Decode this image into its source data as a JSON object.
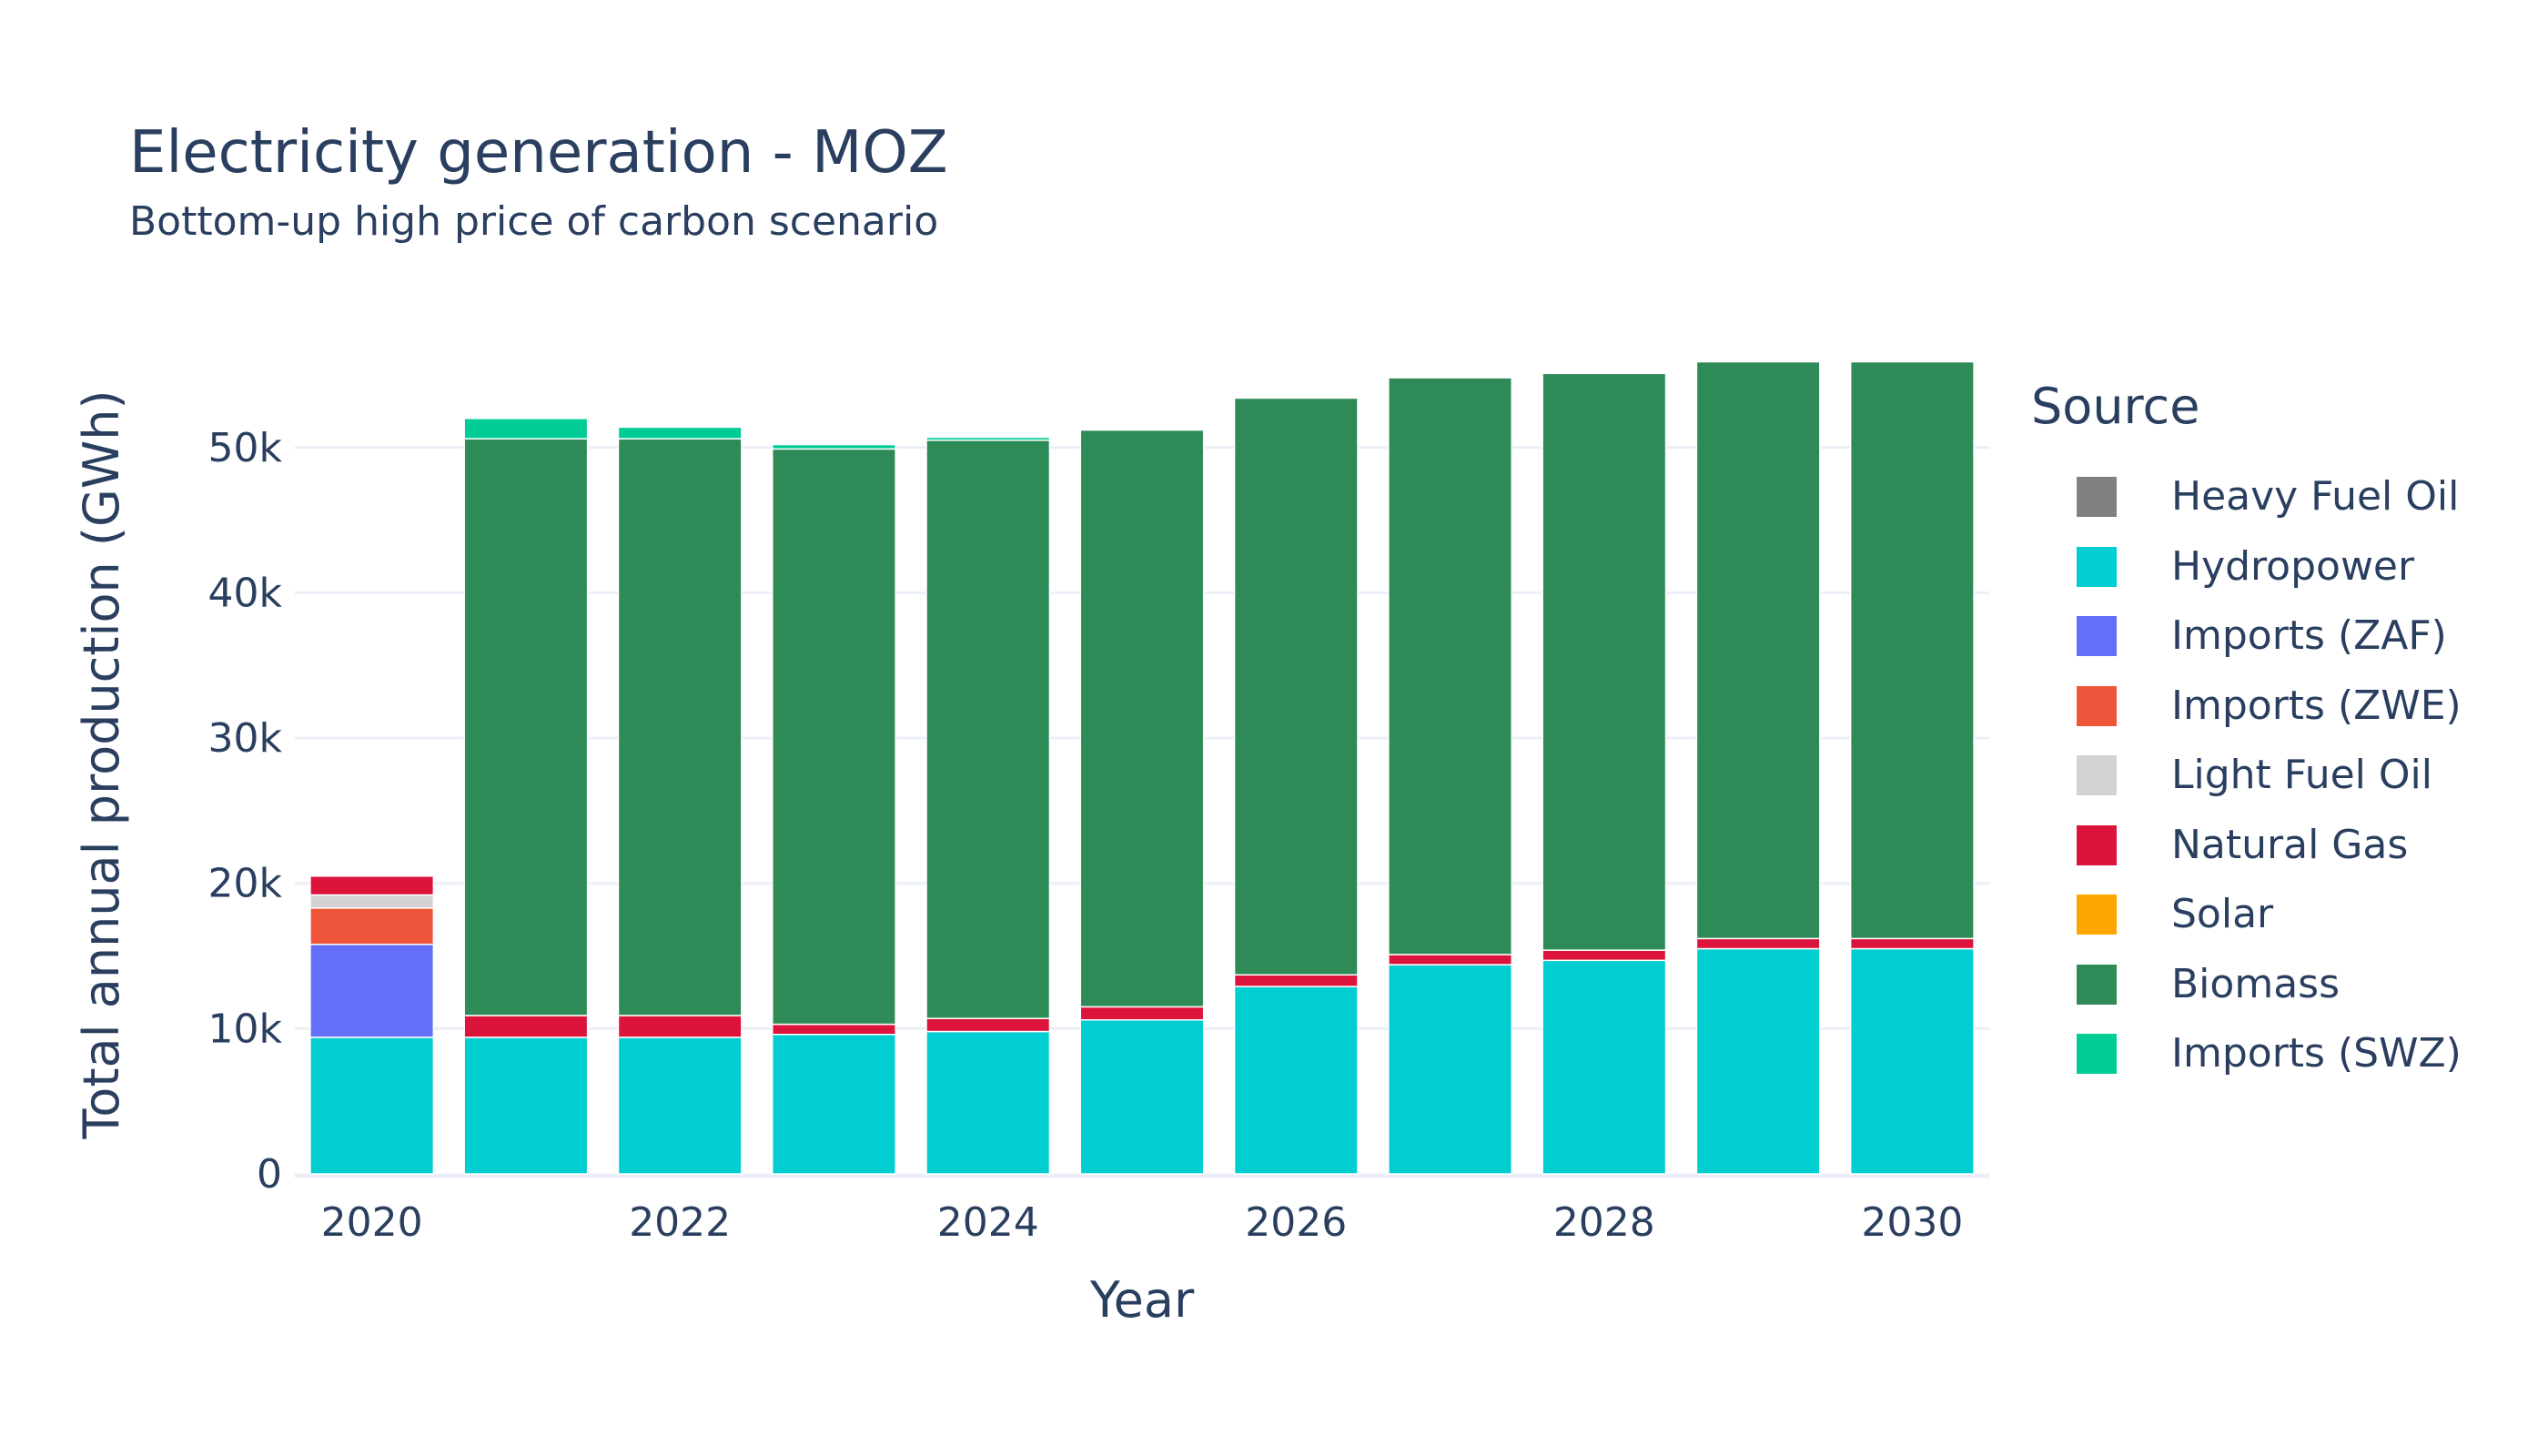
{
  "chart_data": {
    "type": "bar",
    "title": "Electricity generation - MOZ",
    "subtitle": "Bottom-up high price of carbon scenario",
    "xlabel": "Year",
    "ylabel": "Total annual production (GWh)",
    "categories": [
      2020,
      2021,
      2022,
      2023,
      2024,
      2025,
      2026,
      2027,
      2028,
      2029,
      2030
    ],
    "x_ticks": [
      "2020",
      "2022",
      "2024",
      "2026",
      "2028",
      "2030"
    ],
    "y_ticks": [
      {
        "value": 0,
        "label": "0"
      },
      {
        "value": 10000,
        "label": "10k"
      },
      {
        "value": 20000,
        "label": "20k"
      },
      {
        "value": 30000,
        "label": "30k"
      },
      {
        "value": 40000,
        "label": "40k"
      },
      {
        "value": 50000,
        "label": "50k"
      }
    ],
    "ylim": [
      0,
      57000
    ],
    "stacked": true,
    "grid": true,
    "legend_title": "Source",
    "legend_position": "right",
    "series": [
      {
        "name": "Heavy Fuel Oil",
        "color": "#808080",
        "values": [
          0,
          0,
          0,
          0,
          0,
          0,
          0,
          0,
          0,
          0,
          0
        ]
      },
      {
        "name": "Hydropower",
        "color": "#00CED1",
        "values": [
          9400,
          9400,
          9400,
          9600,
          9800,
          10600,
          12900,
          14400,
          14700,
          15500,
          15500
        ]
      },
      {
        "name": "Imports (ZAF)",
        "color": "#636EFA",
        "values": [
          6400,
          0,
          0,
          0,
          0,
          0,
          0,
          0,
          0,
          0,
          0
        ]
      },
      {
        "name": "Imports (ZWE)",
        "color": "#EF553B",
        "values": [
          2500,
          0,
          0,
          0,
          0,
          0,
          0,
          0,
          0,
          0,
          0
        ]
      },
      {
        "name": "Light Fuel Oil",
        "color": "#D3D3D3",
        "values": [
          900,
          0,
          0,
          0,
          0,
          0,
          0,
          0,
          0,
          0,
          0
        ]
      },
      {
        "name": "Natural Gas",
        "color": "#DC143C",
        "values": [
          1300,
          1500,
          1500,
          700,
          900,
          900,
          800,
          700,
          700,
          700,
          700
        ]
      },
      {
        "name": "Solar",
        "color": "#FFA500",
        "values": [
          0,
          0,
          0,
          0,
          0,
          0,
          0,
          0,
          0,
          0,
          0
        ]
      },
      {
        "name": "Biomass",
        "color": "#2E8B57",
        "values": [
          0,
          39700,
          39700,
          39600,
          39800,
          39700,
          39700,
          39700,
          39700,
          39700,
          39700
        ]
      },
      {
        "name": "Imports (SWZ)",
        "color": "#00CC96",
        "values": [
          0,
          1400,
          800,
          300,
          200,
          0,
          0,
          0,
          0,
          0,
          0
        ]
      }
    ]
  }
}
